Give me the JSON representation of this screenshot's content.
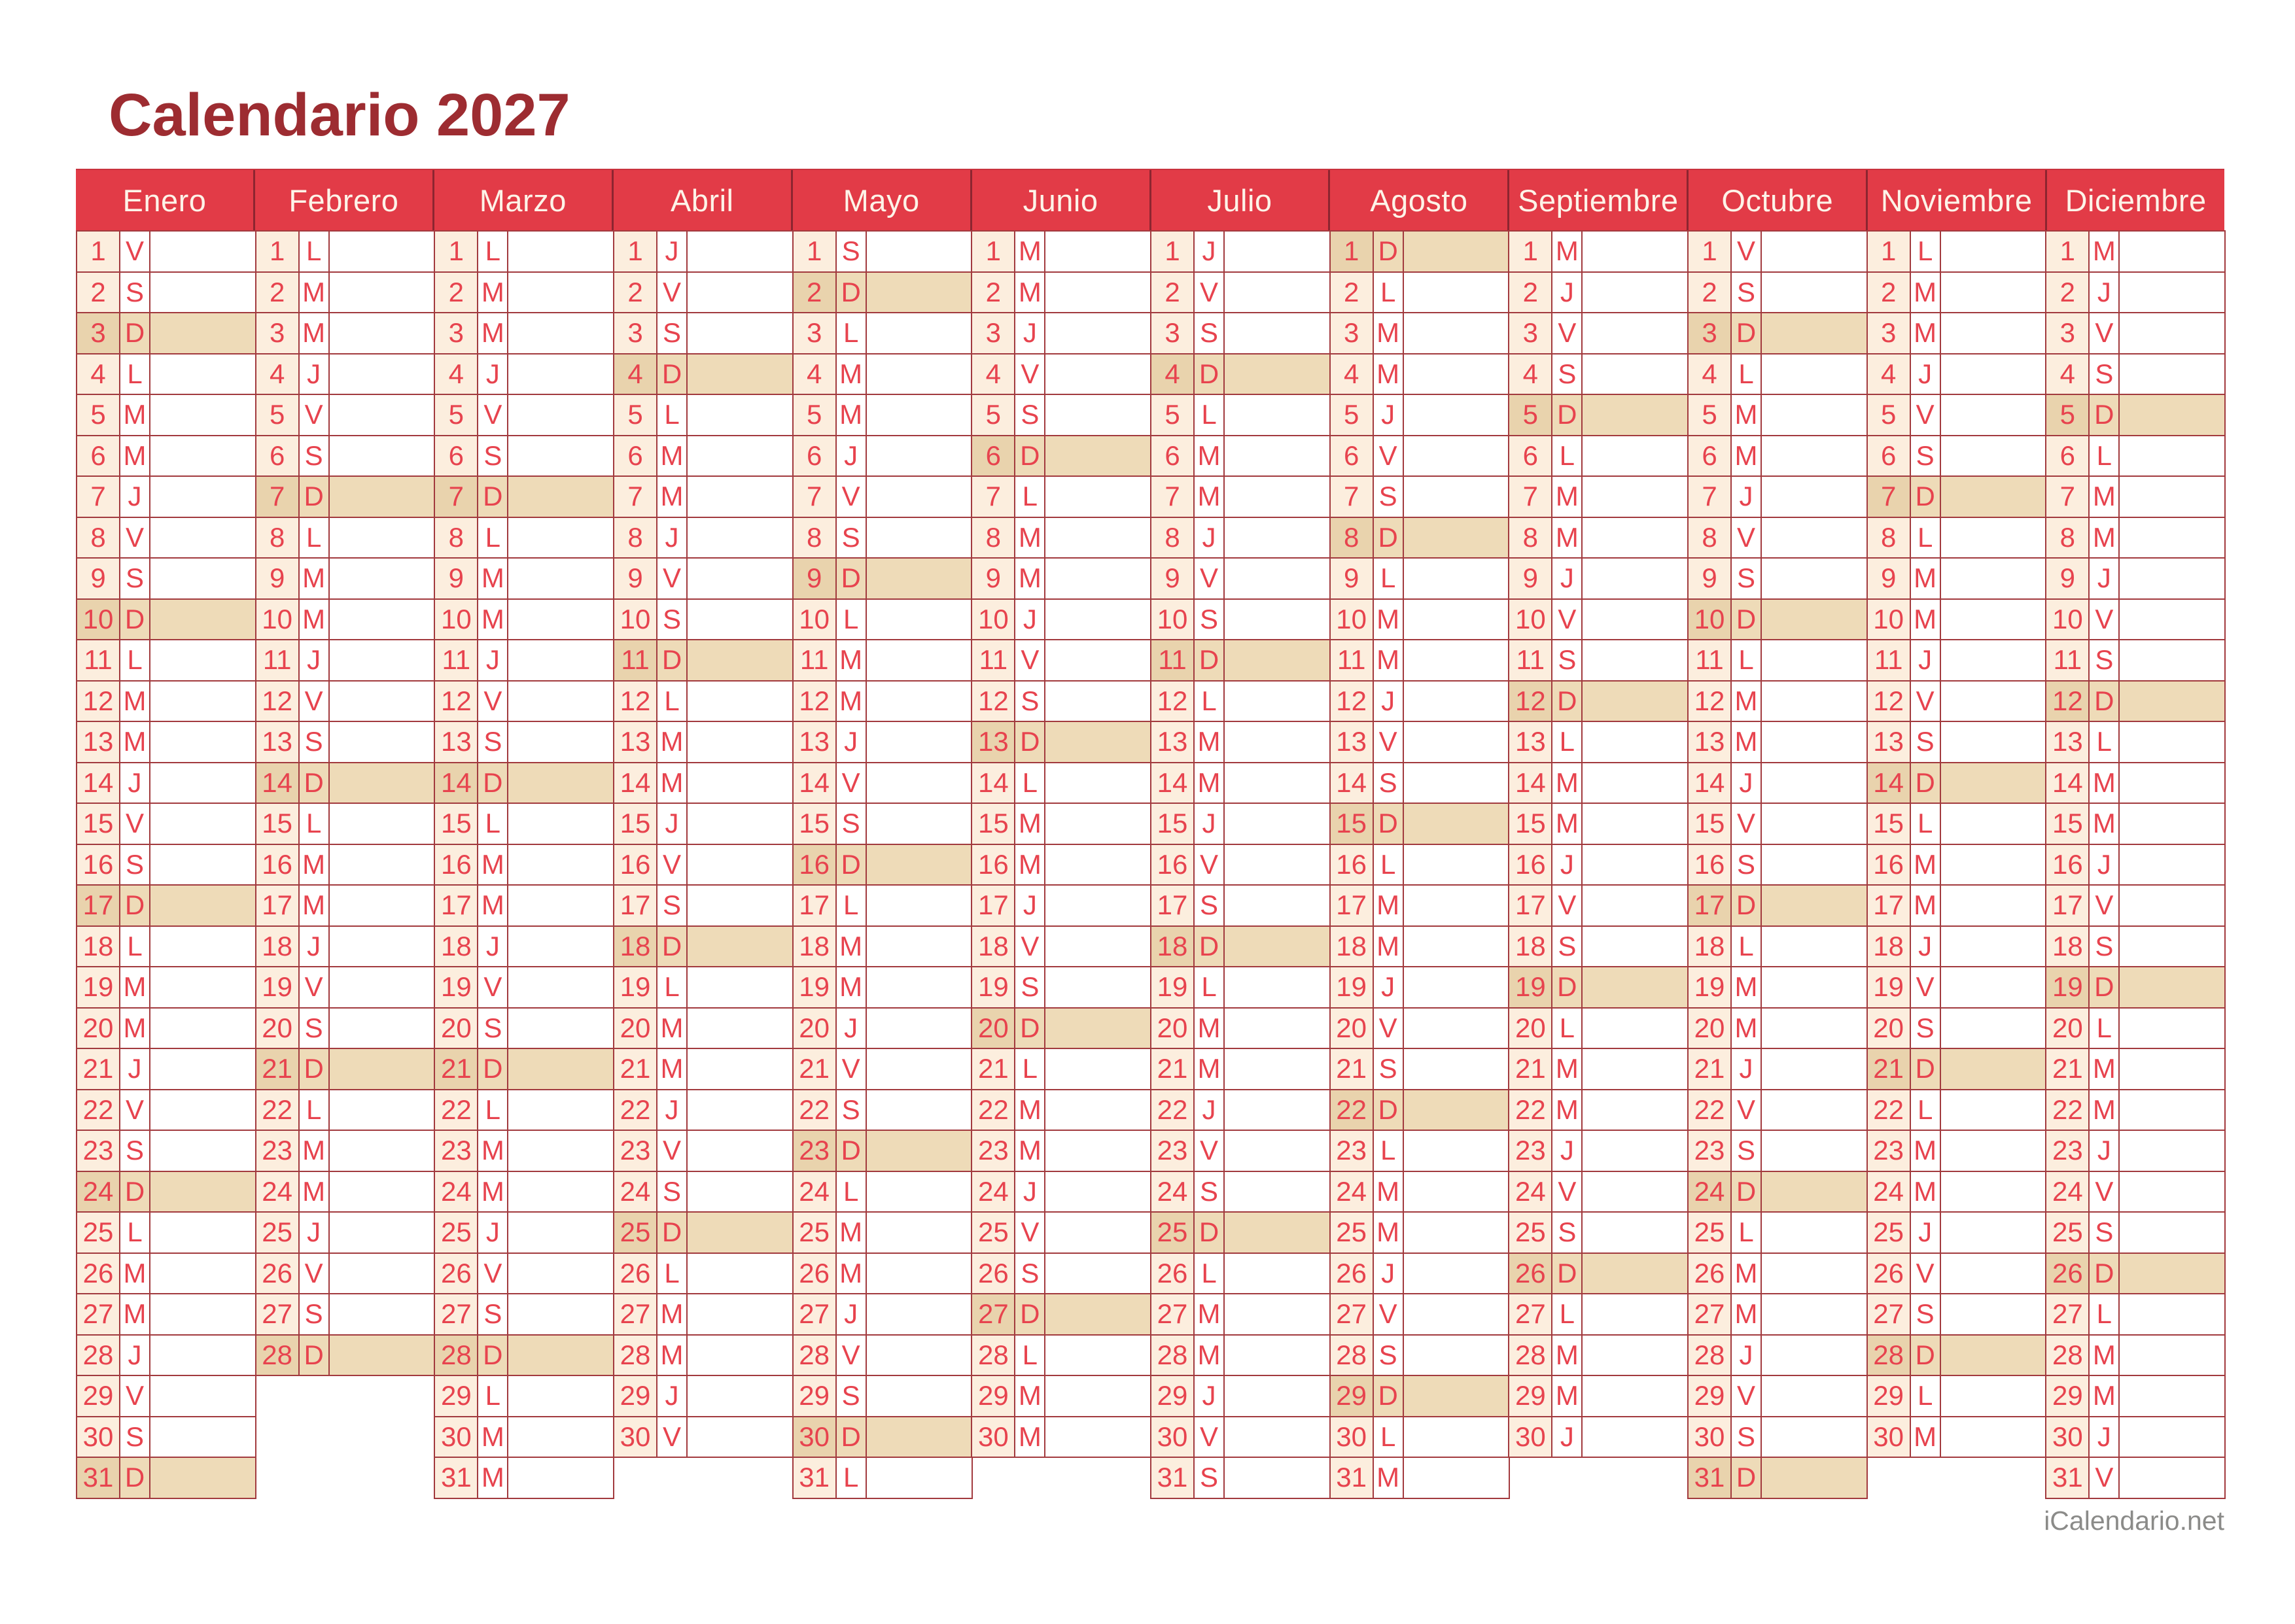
{
  "title": "Calendario 2027",
  "footer": {
    "brand": "iCalendario.net"
  },
  "sunday_letter": "D",
  "colors": {
    "page_bg": "#ffffff",
    "header_bg": "#e23b47",
    "header_separator": "#8d2530",
    "header_top_edge": "#c9323e",
    "header_text": "#fdf3e8",
    "title_text": "#9d2c31",
    "cell_border": "#a23a3e",
    "day_text": "#e7434e",
    "number_cell_bg": "#fceede",
    "sunday_row_bg": "#eedbb8",
    "sunday_number_cell_bg": "#e9d3ad",
    "footer_text": "#8b8b89"
  },
  "months": [
    {
      "name": "Enero",
      "days": [
        [
          1,
          "V"
        ],
        [
          2,
          "S"
        ],
        [
          3,
          "D"
        ],
        [
          4,
          "L"
        ],
        [
          5,
          "M"
        ],
        [
          6,
          "M"
        ],
        [
          7,
          "J"
        ],
        [
          8,
          "V"
        ],
        [
          9,
          "S"
        ],
        [
          10,
          "D"
        ],
        [
          11,
          "L"
        ],
        [
          12,
          "M"
        ],
        [
          13,
          "M"
        ],
        [
          14,
          "J"
        ],
        [
          15,
          "V"
        ],
        [
          16,
          "S"
        ],
        [
          17,
          "D"
        ],
        [
          18,
          "L"
        ],
        [
          19,
          "M"
        ],
        [
          20,
          "M"
        ],
        [
          21,
          "J"
        ],
        [
          22,
          "V"
        ],
        [
          23,
          "S"
        ],
        [
          24,
          "D"
        ],
        [
          25,
          "L"
        ],
        [
          26,
          "M"
        ],
        [
          27,
          "M"
        ],
        [
          28,
          "J"
        ],
        [
          29,
          "V"
        ],
        [
          30,
          "S"
        ],
        [
          31,
          "D"
        ]
      ]
    },
    {
      "name": "Febrero",
      "days": [
        [
          1,
          "L"
        ],
        [
          2,
          "M"
        ],
        [
          3,
          "M"
        ],
        [
          4,
          "J"
        ],
        [
          5,
          "V"
        ],
        [
          6,
          "S"
        ],
        [
          7,
          "D"
        ],
        [
          8,
          "L"
        ],
        [
          9,
          "M"
        ],
        [
          10,
          "M"
        ],
        [
          11,
          "J"
        ],
        [
          12,
          "V"
        ],
        [
          13,
          "S"
        ],
        [
          14,
          "D"
        ],
        [
          15,
          "L"
        ],
        [
          16,
          "M"
        ],
        [
          17,
          "M"
        ],
        [
          18,
          "J"
        ],
        [
          19,
          "V"
        ],
        [
          20,
          "S"
        ],
        [
          21,
          "D"
        ],
        [
          22,
          "L"
        ],
        [
          23,
          "M"
        ],
        [
          24,
          "M"
        ],
        [
          25,
          "J"
        ],
        [
          26,
          "V"
        ],
        [
          27,
          "S"
        ],
        [
          28,
          "D"
        ]
      ]
    },
    {
      "name": "Marzo",
      "days": [
        [
          1,
          "L"
        ],
        [
          2,
          "M"
        ],
        [
          3,
          "M"
        ],
        [
          4,
          "J"
        ],
        [
          5,
          "V"
        ],
        [
          6,
          "S"
        ],
        [
          7,
          "D"
        ],
        [
          8,
          "L"
        ],
        [
          9,
          "M"
        ],
        [
          10,
          "M"
        ],
        [
          11,
          "J"
        ],
        [
          12,
          "V"
        ],
        [
          13,
          "S"
        ],
        [
          14,
          "D"
        ],
        [
          15,
          "L"
        ],
        [
          16,
          "M"
        ],
        [
          17,
          "M"
        ],
        [
          18,
          "J"
        ],
        [
          19,
          "V"
        ],
        [
          20,
          "S"
        ],
        [
          21,
          "D"
        ],
        [
          22,
          "L"
        ],
        [
          23,
          "M"
        ],
        [
          24,
          "M"
        ],
        [
          25,
          "J"
        ],
        [
          26,
          "V"
        ],
        [
          27,
          "S"
        ],
        [
          28,
          "D"
        ],
        [
          29,
          "L"
        ],
        [
          30,
          "M"
        ],
        [
          31,
          "M"
        ]
      ]
    },
    {
      "name": "Abril",
      "days": [
        [
          1,
          "J"
        ],
        [
          2,
          "V"
        ],
        [
          3,
          "S"
        ],
        [
          4,
          "D"
        ],
        [
          5,
          "L"
        ],
        [
          6,
          "M"
        ],
        [
          7,
          "M"
        ],
        [
          8,
          "J"
        ],
        [
          9,
          "V"
        ],
        [
          10,
          "S"
        ],
        [
          11,
          "D"
        ],
        [
          12,
          "L"
        ],
        [
          13,
          "M"
        ],
        [
          14,
          "M"
        ],
        [
          15,
          "J"
        ],
        [
          16,
          "V"
        ],
        [
          17,
          "S"
        ],
        [
          18,
          "D"
        ],
        [
          19,
          "L"
        ],
        [
          20,
          "M"
        ],
        [
          21,
          "M"
        ],
        [
          22,
          "J"
        ],
        [
          23,
          "V"
        ],
        [
          24,
          "S"
        ],
        [
          25,
          "D"
        ],
        [
          26,
          "L"
        ],
        [
          27,
          "M"
        ],
        [
          28,
          "M"
        ],
        [
          29,
          "J"
        ],
        [
          30,
          "V"
        ]
      ]
    },
    {
      "name": "Mayo",
      "days": [
        [
          1,
          "S"
        ],
        [
          2,
          "D"
        ],
        [
          3,
          "L"
        ],
        [
          4,
          "M"
        ],
        [
          5,
          "M"
        ],
        [
          6,
          "J"
        ],
        [
          7,
          "V"
        ],
        [
          8,
          "S"
        ],
        [
          9,
          "D"
        ],
        [
          10,
          "L"
        ],
        [
          11,
          "M"
        ],
        [
          12,
          "M"
        ],
        [
          13,
          "J"
        ],
        [
          14,
          "V"
        ],
        [
          15,
          "S"
        ],
        [
          16,
          "D"
        ],
        [
          17,
          "L"
        ],
        [
          18,
          "M"
        ],
        [
          19,
          "M"
        ],
        [
          20,
          "J"
        ],
        [
          21,
          "V"
        ],
        [
          22,
          "S"
        ],
        [
          23,
          "D"
        ],
        [
          24,
          "L"
        ],
        [
          25,
          "M"
        ],
        [
          26,
          "M"
        ],
        [
          27,
          "J"
        ],
        [
          28,
          "V"
        ],
        [
          29,
          "S"
        ],
        [
          30,
          "D"
        ],
        [
          31,
          "L"
        ]
      ]
    },
    {
      "name": "Junio",
      "days": [
        [
          1,
          "M"
        ],
        [
          2,
          "M"
        ],
        [
          3,
          "J"
        ],
        [
          4,
          "V"
        ],
        [
          5,
          "S"
        ],
        [
          6,
          "D"
        ],
        [
          7,
          "L"
        ],
        [
          8,
          "M"
        ],
        [
          9,
          "M"
        ],
        [
          10,
          "J"
        ],
        [
          11,
          "V"
        ],
        [
          12,
          "S"
        ],
        [
          13,
          "D"
        ],
        [
          14,
          "L"
        ],
        [
          15,
          "M"
        ],
        [
          16,
          "M"
        ],
        [
          17,
          "J"
        ],
        [
          18,
          "V"
        ],
        [
          19,
          "S"
        ],
        [
          20,
          "D"
        ],
        [
          21,
          "L"
        ],
        [
          22,
          "M"
        ],
        [
          23,
          "M"
        ],
        [
          24,
          "J"
        ],
        [
          25,
          "V"
        ],
        [
          26,
          "S"
        ],
        [
          27,
          "D"
        ],
        [
          28,
          "L"
        ],
        [
          29,
          "M"
        ],
        [
          30,
          "M"
        ]
      ]
    },
    {
      "name": "Julio",
      "days": [
        [
          1,
          "J"
        ],
        [
          2,
          "V"
        ],
        [
          3,
          "S"
        ],
        [
          4,
          "D"
        ],
        [
          5,
          "L"
        ],
        [
          6,
          "M"
        ],
        [
          7,
          "M"
        ],
        [
          8,
          "J"
        ],
        [
          9,
          "V"
        ],
        [
          10,
          "S"
        ],
        [
          11,
          "D"
        ],
        [
          12,
          "L"
        ],
        [
          13,
          "M"
        ],
        [
          14,
          "M"
        ],
        [
          15,
          "J"
        ],
        [
          16,
          "V"
        ],
        [
          17,
          "S"
        ],
        [
          18,
          "D"
        ],
        [
          19,
          "L"
        ],
        [
          20,
          "M"
        ],
        [
          21,
          "M"
        ],
        [
          22,
          "J"
        ],
        [
          23,
          "V"
        ],
        [
          24,
          "S"
        ],
        [
          25,
          "D"
        ],
        [
          26,
          "L"
        ],
        [
          27,
          "M"
        ],
        [
          28,
          "M"
        ],
        [
          29,
          "J"
        ],
        [
          30,
          "V"
        ],
        [
          31,
          "S"
        ]
      ]
    },
    {
      "name": "Agosto",
      "days": [
        [
          1,
          "D"
        ],
        [
          2,
          "L"
        ],
        [
          3,
          "M"
        ],
        [
          4,
          "M"
        ],
        [
          5,
          "J"
        ],
        [
          6,
          "V"
        ],
        [
          7,
          "S"
        ],
        [
          8,
          "D"
        ],
        [
          9,
          "L"
        ],
        [
          10,
          "M"
        ],
        [
          11,
          "M"
        ],
        [
          12,
          "J"
        ],
        [
          13,
          "V"
        ],
        [
          14,
          "S"
        ],
        [
          15,
          "D"
        ],
        [
          16,
          "L"
        ],
        [
          17,
          "M"
        ],
        [
          18,
          "M"
        ],
        [
          19,
          "J"
        ],
        [
          20,
          "V"
        ],
        [
          21,
          "S"
        ],
        [
          22,
          "D"
        ],
        [
          23,
          "L"
        ],
        [
          24,
          "M"
        ],
        [
          25,
          "M"
        ],
        [
          26,
          "J"
        ],
        [
          27,
          "V"
        ],
        [
          28,
          "S"
        ],
        [
          29,
          "D"
        ],
        [
          30,
          "L"
        ],
        [
          31,
          "M"
        ]
      ]
    },
    {
      "name": "Septiembre",
      "days": [
        [
          1,
          "M"
        ],
        [
          2,
          "J"
        ],
        [
          3,
          "V"
        ],
        [
          4,
          "S"
        ],
        [
          5,
          "D"
        ],
        [
          6,
          "L"
        ],
        [
          7,
          "M"
        ],
        [
          8,
          "M"
        ],
        [
          9,
          "J"
        ],
        [
          10,
          "V"
        ],
        [
          11,
          "S"
        ],
        [
          12,
          "D"
        ],
        [
          13,
          "L"
        ],
        [
          14,
          "M"
        ],
        [
          15,
          "M"
        ],
        [
          16,
          "J"
        ],
        [
          17,
          "V"
        ],
        [
          18,
          "S"
        ],
        [
          19,
          "D"
        ],
        [
          20,
          "L"
        ],
        [
          21,
          "M"
        ],
        [
          22,
          "M"
        ],
        [
          23,
          "J"
        ],
        [
          24,
          "V"
        ],
        [
          25,
          "S"
        ],
        [
          26,
          "D"
        ],
        [
          27,
          "L"
        ],
        [
          28,
          "M"
        ],
        [
          29,
          "M"
        ],
        [
          30,
          "J"
        ]
      ]
    },
    {
      "name": "Octubre",
      "days": [
        [
          1,
          "V"
        ],
        [
          2,
          "S"
        ],
        [
          3,
          "D"
        ],
        [
          4,
          "L"
        ],
        [
          5,
          "M"
        ],
        [
          6,
          "M"
        ],
        [
          7,
          "J"
        ],
        [
          8,
          "V"
        ],
        [
          9,
          "S"
        ],
        [
          10,
          "D"
        ],
        [
          11,
          "L"
        ],
        [
          12,
          "M"
        ],
        [
          13,
          "M"
        ],
        [
          14,
          "J"
        ],
        [
          15,
          "V"
        ],
        [
          16,
          "S"
        ],
        [
          17,
          "D"
        ],
        [
          18,
          "L"
        ],
        [
          19,
          "M"
        ],
        [
          20,
          "M"
        ],
        [
          21,
          "J"
        ],
        [
          22,
          "V"
        ],
        [
          23,
          "S"
        ],
        [
          24,
          "D"
        ],
        [
          25,
          "L"
        ],
        [
          26,
          "M"
        ],
        [
          27,
          "M"
        ],
        [
          28,
          "J"
        ],
        [
          29,
          "V"
        ],
        [
          30,
          "S"
        ],
        [
          31,
          "D"
        ]
      ]
    },
    {
      "name": "Noviembre",
      "days": [
        [
          1,
          "L"
        ],
        [
          2,
          "M"
        ],
        [
          3,
          "M"
        ],
        [
          4,
          "J"
        ],
        [
          5,
          "V"
        ],
        [
          6,
          "S"
        ],
        [
          7,
          "D"
        ],
        [
          8,
          "L"
        ],
        [
          9,
          "M"
        ],
        [
          10,
          "M"
        ],
        [
          11,
          "J"
        ],
        [
          12,
          "V"
        ],
        [
          13,
          "S"
        ],
        [
          14,
          "D"
        ],
        [
          15,
          "L"
        ],
        [
          16,
          "M"
        ],
        [
          17,
          "M"
        ],
        [
          18,
          "J"
        ],
        [
          19,
          "V"
        ],
        [
          20,
          "S"
        ],
        [
          21,
          "D"
        ],
        [
          22,
          "L"
        ],
        [
          23,
          "M"
        ],
        [
          24,
          "M"
        ],
        [
          25,
          "J"
        ],
        [
          26,
          "V"
        ],
        [
          27,
          "S"
        ],
        [
          28,
          "D"
        ],
        [
          29,
          "L"
        ],
        [
          30,
          "M"
        ]
      ]
    },
    {
      "name": "Diciembre",
      "days": [
        [
          1,
          "M"
        ],
        [
          2,
          "J"
        ],
        [
          3,
          "V"
        ],
        [
          4,
          "S"
        ],
        [
          5,
          "D"
        ],
        [
          6,
          "L"
        ],
        [
          7,
          "M"
        ],
        [
          8,
          "M"
        ],
        [
          9,
          "J"
        ],
        [
          10,
          "V"
        ],
        [
          11,
          "S"
        ],
        [
          12,
          "D"
        ],
        [
          13,
          "L"
        ],
        [
          14,
          "M"
        ],
        [
          15,
          "M"
        ],
        [
          16,
          "J"
        ],
        [
          17,
          "V"
        ],
        [
          18,
          "S"
        ],
        [
          19,
          "D"
        ],
        [
          20,
          "L"
        ],
        [
          21,
          "M"
        ],
        [
          22,
          "M"
        ],
        [
          23,
          "J"
        ],
        [
          24,
          "V"
        ],
        [
          25,
          "S"
        ],
        [
          26,
          "D"
        ],
        [
          27,
          "L"
        ],
        [
          28,
          "M"
        ],
        [
          29,
          "M"
        ],
        [
          30,
          "J"
        ],
        [
          31,
          "V"
        ]
      ]
    }
  ]
}
